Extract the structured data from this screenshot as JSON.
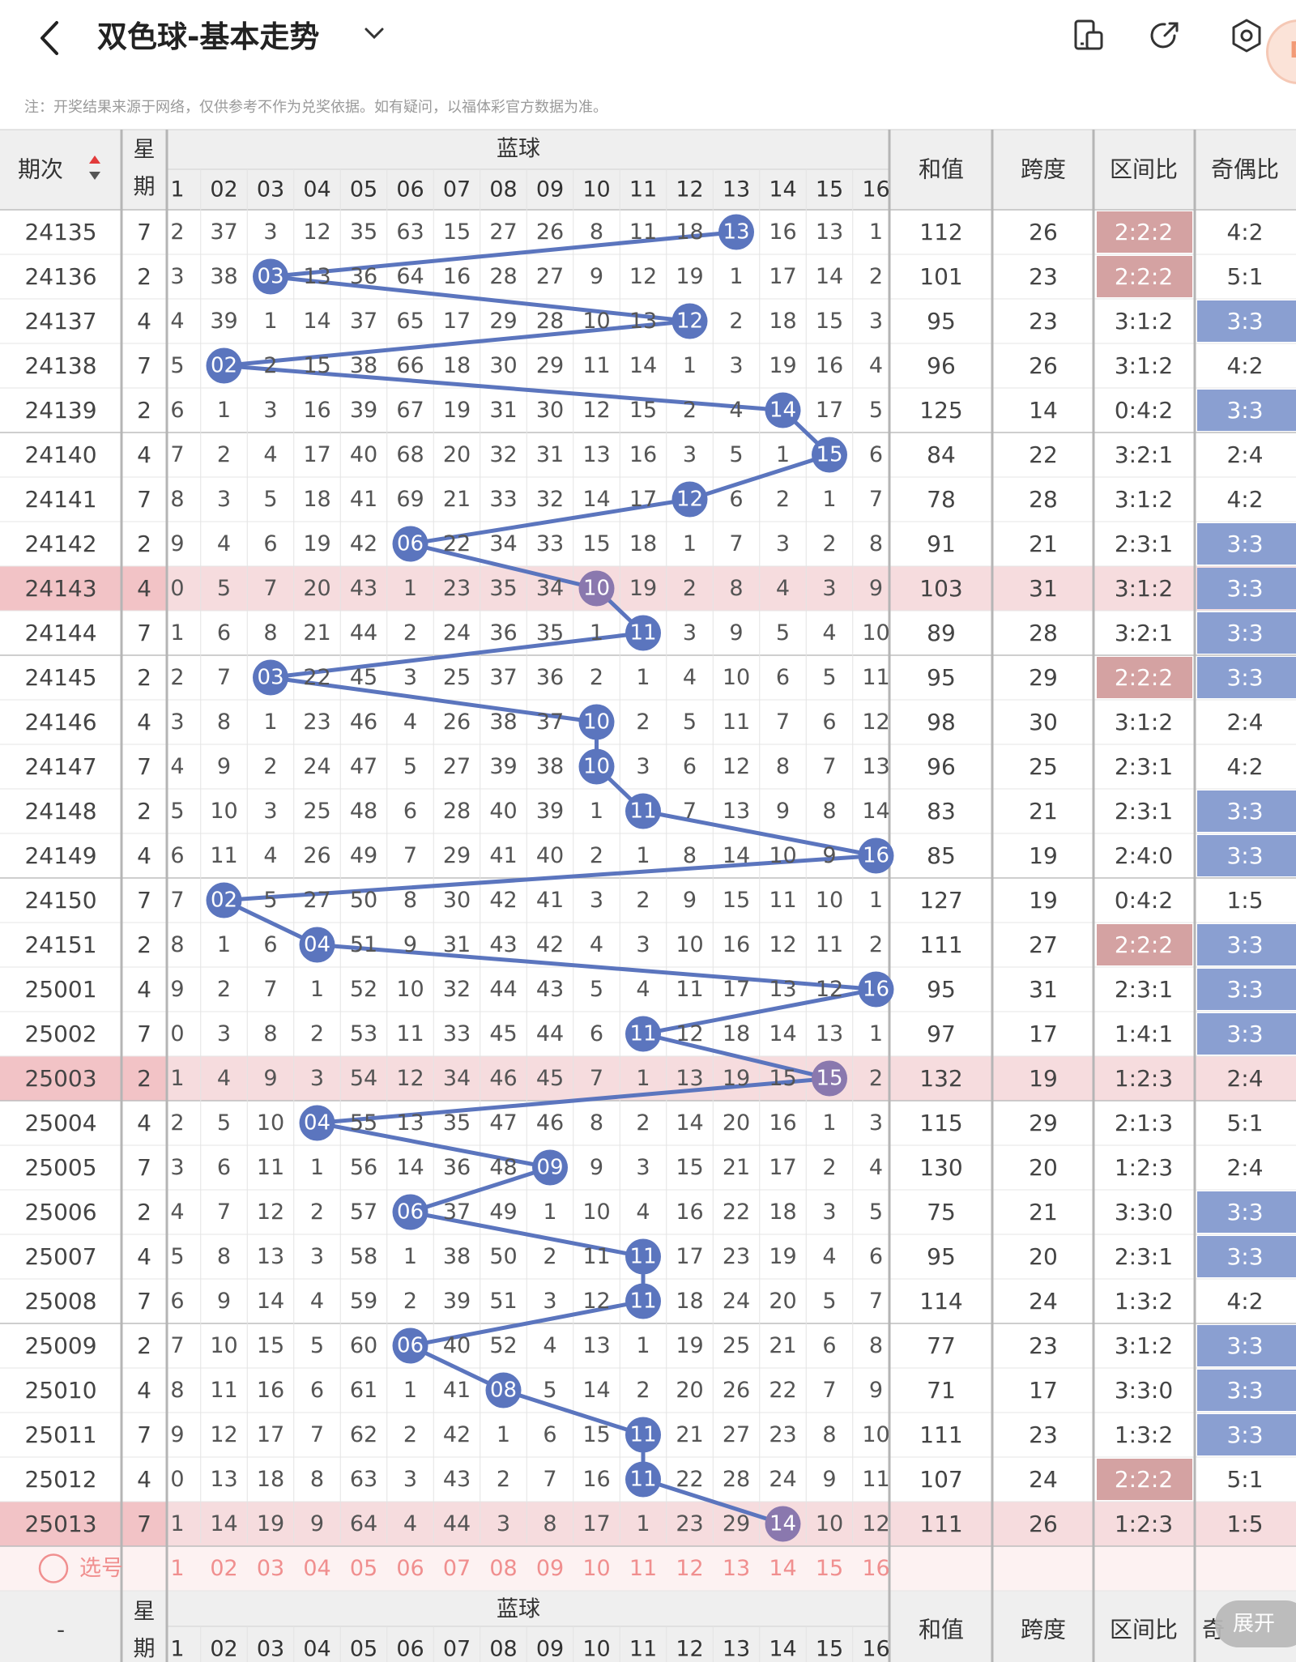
{
  "header": {
    "title": "双色球-基本走势",
    "notice": "注：开奖结果来源于网络，仅供参考不作为兑奖依据。如有疑问，以福体彩官方数据为准。"
  },
  "colors": {
    "line": "#5B75BE",
    "ball": "#5B75BE",
    "ball_hit_row": "#8A78AE",
    "ratio_highlight": "#D4A2A2",
    "odd_even_highlight": "#8A9FD1",
    "highlight_row": "#F6DCDE",
    "header_bg": "#EFEFEF",
    "select_row_bg": "#FDF2F2",
    "select_text": "#F08F8F"
  },
  "table": {
    "header": {
      "period_label": "期次",
      "sort_icon": "sort-icon",
      "week_label_1": "星",
      "week_label_2": "期",
      "blue_label": "蓝球",
      "sum_label": "和值",
      "span_label": "跨度",
      "zone_label": "区间比",
      "odd_even_label": "奇偶比",
      "blue_numbers": [
        "1",
        "02",
        "03",
        "04",
        "05",
        "06",
        "07",
        "08",
        "09",
        "10",
        "11",
        "12",
        "13",
        "14",
        "15",
        "16"
      ]
    },
    "rows": [
      {
        "period": "24135",
        "week": "7",
        "first": "2",
        "cells": [
          "37",
          "3",
          "12",
          "35",
          "63",
          "15",
          "27",
          "26",
          "8",
          "11",
          "18",
          "13",
          "16",
          "13",
          "1"
        ],
        "ball": 13,
        "sum": "112",
        "span": "26",
        "zone": "2:2:2",
        "oddeven": "4:2",
        "zoneHl": true,
        "oeHl": false,
        "rowHl": false
      },
      {
        "period": "24136",
        "week": "2",
        "first": "3",
        "cells": [
          "38",
          "03",
          "13",
          "36",
          "64",
          "16",
          "28",
          "27",
          "9",
          "12",
          "19",
          "1",
          "17",
          "14",
          "2"
        ],
        "ball": 3,
        "sum": "101",
        "span": "23",
        "zone": "2:2:2",
        "oddeven": "5:1",
        "zoneHl": true,
        "oeHl": false,
        "rowHl": false
      },
      {
        "period": "24137",
        "week": "4",
        "first": "4",
        "cells": [
          "39",
          "1",
          "14",
          "37",
          "65",
          "17",
          "29",
          "28",
          "10",
          "13",
          "12",
          "2",
          "18",
          "15",
          "3"
        ],
        "ball": 12,
        "sum": "95",
        "span": "23",
        "zone": "3:1:2",
        "oddeven": "3:3",
        "zoneHl": false,
        "oeHl": true,
        "rowHl": false
      },
      {
        "period": "24138",
        "week": "7",
        "first": "5",
        "cells": [
          "02",
          "2",
          "15",
          "38",
          "66",
          "18",
          "30",
          "29",
          "11",
          "14",
          "1",
          "3",
          "19",
          "16",
          "4"
        ],
        "ball": 2,
        "sum": "96",
        "span": "26",
        "zone": "3:1:2",
        "oddeven": "4:2",
        "zoneHl": false,
        "oeHl": false,
        "rowHl": false
      },
      {
        "period": "24139",
        "week": "2",
        "first": "6",
        "cells": [
          "1",
          "3",
          "16",
          "39",
          "67",
          "19",
          "31",
          "30",
          "12",
          "15",
          "2",
          "4",
          "14",
          "17",
          "5"
        ],
        "ball": 14,
        "sum": "125",
        "span": "14",
        "zone": "0:4:2",
        "oddeven": "3:3",
        "zoneHl": false,
        "oeHl": true,
        "rowHl": false
      },
      {
        "period": "24140",
        "week": "4",
        "first": "7",
        "cells": [
          "2",
          "4",
          "17",
          "40",
          "68",
          "20",
          "32",
          "31",
          "13",
          "16",
          "3",
          "5",
          "1",
          "15",
          "6"
        ],
        "ball": 15,
        "sum": "84",
        "span": "22",
        "zone": "3:2:1",
        "oddeven": "2:4",
        "zoneHl": false,
        "oeHl": false,
        "rowHl": false
      },
      {
        "period": "24141",
        "week": "7",
        "first": "8",
        "cells": [
          "3",
          "5",
          "18",
          "41",
          "69",
          "21",
          "33",
          "32",
          "14",
          "17",
          "12",
          "6",
          "2",
          "1",
          "7"
        ],
        "ball": 12,
        "sum": "78",
        "span": "28",
        "zone": "3:1:2",
        "oddeven": "4:2",
        "zoneHl": false,
        "oeHl": false,
        "rowHl": false
      },
      {
        "period": "24142",
        "week": "2",
        "first": "9",
        "cells": [
          "4",
          "6",
          "19",
          "42",
          "06",
          "22",
          "34",
          "33",
          "15",
          "18",
          "1",
          "7",
          "3",
          "2",
          "8"
        ],
        "ball": 6,
        "sum": "91",
        "span": "21",
        "zone": "2:3:1",
        "oddeven": "3:3",
        "zoneHl": false,
        "oeHl": true,
        "rowHl": false
      },
      {
        "period": "24143",
        "week": "4",
        "first": "0",
        "cells": [
          "5",
          "7",
          "20",
          "43",
          "1",
          "23",
          "35",
          "34",
          "10",
          "19",
          "2",
          "8",
          "4",
          "3",
          "9"
        ],
        "ball": 10,
        "sum": "103",
        "span": "31",
        "zone": "3:1:2",
        "oddeven": "3:3",
        "zoneHl": false,
        "oeHl": true,
        "rowHl": true
      },
      {
        "period": "24144",
        "week": "7",
        "first": "1",
        "cells": [
          "6",
          "8",
          "21",
          "44",
          "2",
          "24",
          "36",
          "35",
          "1",
          "11",
          "3",
          "9",
          "5",
          "4",
          "10"
        ],
        "ball": 11,
        "sum": "89",
        "span": "28",
        "zone": "3:2:1",
        "oddeven": "3:3",
        "zoneHl": false,
        "oeHl": true,
        "rowHl": false
      },
      {
        "period": "24145",
        "week": "2",
        "first": "2",
        "cells": [
          "7",
          "03",
          "22",
          "45",
          "3",
          "25",
          "37",
          "36",
          "2",
          "1",
          "4",
          "10",
          "6",
          "5",
          "11"
        ],
        "ball": 3,
        "sum": "95",
        "span": "29",
        "zone": "2:2:2",
        "oddeven": "3:3",
        "zoneHl": true,
        "oeHl": true,
        "rowHl": false
      },
      {
        "period": "24146",
        "week": "4",
        "first": "3",
        "cells": [
          "8",
          "1",
          "23",
          "46",
          "4",
          "26",
          "38",
          "37",
          "10",
          "2",
          "5",
          "11",
          "7",
          "6",
          "12"
        ],
        "ball": 10,
        "sum": "98",
        "span": "30",
        "zone": "3:1:2",
        "oddeven": "2:4",
        "zoneHl": false,
        "oeHl": false,
        "rowHl": false
      },
      {
        "period": "24147",
        "week": "7",
        "first": "4",
        "cells": [
          "9",
          "2",
          "24",
          "47",
          "5",
          "27",
          "39",
          "38",
          "10",
          "3",
          "6",
          "12",
          "8",
          "7",
          "13"
        ],
        "ball": 10,
        "sum": "96",
        "span": "25",
        "zone": "2:3:1",
        "oddeven": "4:2",
        "zoneHl": false,
        "oeHl": false,
        "rowHl": false
      },
      {
        "period": "24148",
        "week": "2",
        "first": "5",
        "cells": [
          "10",
          "3",
          "25",
          "48",
          "6",
          "28",
          "40",
          "39",
          "1",
          "11",
          "7",
          "13",
          "9",
          "8",
          "14"
        ],
        "ball": 11,
        "sum": "83",
        "span": "21",
        "zone": "2:3:1",
        "oddeven": "3:3",
        "zoneHl": false,
        "oeHl": true,
        "rowHl": false
      },
      {
        "period": "24149",
        "week": "4",
        "first": "6",
        "cells": [
          "11",
          "4",
          "26",
          "49",
          "7",
          "29",
          "41",
          "40",
          "2",
          "1",
          "8",
          "14",
          "10",
          "9",
          "16"
        ],
        "ball": 16,
        "sum": "85",
        "span": "19",
        "zone": "2:4:0",
        "oddeven": "3:3",
        "zoneHl": false,
        "oeHl": true,
        "rowHl": false
      },
      {
        "period": "24150",
        "week": "7",
        "first": "7",
        "cells": [
          "02",
          "5",
          "27",
          "50",
          "8",
          "30",
          "42",
          "41",
          "3",
          "2",
          "9",
          "15",
          "11",
          "10",
          "1"
        ],
        "ball": 2,
        "sum": "127",
        "span": "19",
        "zone": "0:4:2",
        "oddeven": "1:5",
        "zoneHl": false,
        "oeHl": false,
        "rowHl": false
      },
      {
        "period": "24151",
        "week": "2",
        "first": "8",
        "cells": [
          "1",
          "6",
          "04",
          "51",
          "9",
          "31",
          "43",
          "42",
          "4",
          "3",
          "10",
          "16",
          "12",
          "11",
          "2"
        ],
        "ball": 4,
        "sum": "111",
        "span": "27",
        "zone": "2:2:2",
        "oddeven": "3:3",
        "zoneHl": true,
        "oeHl": true,
        "rowHl": false
      },
      {
        "period": "25001",
        "week": "4",
        "first": "9",
        "cells": [
          "2",
          "7",
          "1",
          "52",
          "10",
          "32",
          "44",
          "43",
          "5",
          "4",
          "11",
          "17",
          "13",
          "12",
          "16"
        ],
        "ball": 16,
        "sum": "95",
        "span": "31",
        "zone": "2:3:1",
        "oddeven": "3:3",
        "zoneHl": false,
        "oeHl": true,
        "rowHl": false
      },
      {
        "period": "25002",
        "week": "7",
        "first": "0",
        "cells": [
          "3",
          "8",
          "2",
          "53",
          "11",
          "33",
          "45",
          "44",
          "6",
          "11",
          "12",
          "18",
          "14",
          "13",
          "1"
        ],
        "ball": 11,
        "sum": "97",
        "span": "17",
        "zone": "1:4:1",
        "oddeven": "3:3",
        "zoneHl": false,
        "oeHl": true,
        "rowHl": false
      },
      {
        "period": "25003",
        "week": "2",
        "first": "1",
        "cells": [
          "4",
          "9",
          "3",
          "54",
          "12",
          "34",
          "46",
          "45",
          "7",
          "1",
          "13",
          "19",
          "15",
          "15",
          "2"
        ],
        "ball": 15,
        "sum": "132",
        "span": "19",
        "zone": "1:2:3",
        "oddeven": "2:4",
        "zoneHl": false,
        "oeHl": false,
        "rowHl": true
      },
      {
        "period": "25004",
        "week": "4",
        "first": "2",
        "cells": [
          "5",
          "10",
          "04",
          "55",
          "13",
          "35",
          "47",
          "46",
          "8",
          "2",
          "14",
          "20",
          "16",
          "1",
          "3"
        ],
        "ball": 4,
        "sum": "115",
        "span": "29",
        "zone": "2:1:3",
        "oddeven": "5:1",
        "zoneHl": false,
        "oeHl": false,
        "rowHl": false
      },
      {
        "period": "25005",
        "week": "7",
        "first": "3",
        "cells": [
          "6",
          "11",
          "1",
          "56",
          "14",
          "36",
          "48",
          "09",
          "9",
          "3",
          "15",
          "21",
          "17",
          "2",
          "4"
        ],
        "ball": 9,
        "sum": "130",
        "span": "20",
        "zone": "1:2:3",
        "oddeven": "2:4",
        "zoneHl": false,
        "oeHl": false,
        "rowHl": false
      },
      {
        "period": "25006",
        "week": "2",
        "first": "4",
        "cells": [
          "7",
          "12",
          "2",
          "57",
          "06",
          "37",
          "49",
          "1",
          "10",
          "4",
          "16",
          "22",
          "18",
          "3",
          "5"
        ],
        "ball": 6,
        "sum": "75",
        "span": "21",
        "zone": "3:3:0",
        "oddeven": "3:3",
        "zoneHl": false,
        "oeHl": true,
        "rowHl": false
      },
      {
        "period": "25007",
        "week": "4",
        "first": "5",
        "cells": [
          "8",
          "13",
          "3",
          "58",
          "1",
          "38",
          "50",
          "2",
          "11",
          "11",
          "17",
          "23",
          "19",
          "4",
          "6"
        ],
        "ball": 11,
        "sum": "95",
        "span": "20",
        "zone": "2:3:1",
        "oddeven": "3:3",
        "zoneHl": false,
        "oeHl": true,
        "rowHl": false
      },
      {
        "period": "25008",
        "week": "7",
        "first": "6",
        "cells": [
          "9",
          "14",
          "4",
          "59",
          "2",
          "39",
          "51",
          "3",
          "12",
          "11",
          "18",
          "24",
          "20",
          "5",
          "7"
        ],
        "ball": 11,
        "sum": "114",
        "span": "24",
        "zone": "1:3:2",
        "oddeven": "4:2",
        "zoneHl": false,
        "oeHl": false,
        "rowHl": false
      },
      {
        "period": "25009",
        "week": "2",
        "first": "7",
        "cells": [
          "10",
          "15",
          "5",
          "60",
          "06",
          "40",
          "52",
          "4",
          "13",
          "1",
          "19",
          "25",
          "21",
          "6",
          "8"
        ],
        "ball": 6,
        "sum": "77",
        "span": "23",
        "zone": "3:1:2",
        "oddeven": "3:3",
        "zoneHl": false,
        "oeHl": true,
        "rowHl": false
      },
      {
        "period": "25010",
        "week": "4",
        "first": "8",
        "cells": [
          "11",
          "16",
          "6",
          "61",
          "1",
          "41",
          "08",
          "5",
          "14",
          "2",
          "20",
          "26",
          "22",
          "7",
          "9"
        ],
        "ball": 8,
        "sum": "71",
        "span": "17",
        "zone": "3:3:0",
        "oddeven": "3:3",
        "zoneHl": false,
        "oeHl": true,
        "rowHl": false
      },
      {
        "period": "25011",
        "week": "7",
        "first": "9",
        "cells": [
          "12",
          "17",
          "7",
          "62",
          "2",
          "42",
          "1",
          "6",
          "15",
          "11",
          "21",
          "27",
          "23",
          "8",
          "10"
        ],
        "ball": 11,
        "sum": "111",
        "span": "23",
        "zone": "1:3:2",
        "oddeven": "3:3",
        "zoneHl": false,
        "oeHl": true,
        "rowHl": false
      },
      {
        "period": "25012",
        "week": "4",
        "first": "0",
        "cells": [
          "13",
          "18",
          "8",
          "63",
          "3",
          "43",
          "2",
          "7",
          "16",
          "11",
          "22",
          "28",
          "24",
          "9",
          "11"
        ],
        "ball": 11,
        "sum": "107",
        "span": "24",
        "zone": "2:2:2",
        "oddeven": "5:1",
        "zoneHl": true,
        "oeHl": false,
        "rowHl": false
      },
      {
        "period": "25013",
        "week": "7",
        "first": "1",
        "cells": [
          "14",
          "19",
          "9",
          "64",
          "4",
          "44",
          "3",
          "8",
          "17",
          "1",
          "23",
          "29",
          "14",
          "10",
          "12"
        ],
        "ball": 14,
        "sum": "111",
        "span": "26",
        "zone": "1:2:3",
        "oddeven": "1:5",
        "zoneHl": false,
        "oeHl": false,
        "rowHl": true
      }
    ],
    "select_row": {
      "label": "选号",
      "numbers": [
        "1",
        "02",
        "03",
        "04",
        "05",
        "06",
        "07",
        "08",
        "09",
        "10",
        "11",
        "12",
        "13",
        "14",
        "15",
        "16"
      ]
    },
    "footer": {
      "period_label": "-",
      "week_label_1": "星",
      "week_label_2": "期",
      "blue_label": "蓝球",
      "sum_label": "和值",
      "span_label": "跨度",
      "zone_label": "区间比",
      "odd_even_label": "奇",
      "expand_label": "展开",
      "blue_numbers": [
        "1",
        "02",
        "03",
        "04",
        "05",
        "06",
        "07",
        "08",
        "09",
        "10",
        "11",
        "12",
        "13",
        "14",
        "15",
        "16"
      ]
    }
  }
}
